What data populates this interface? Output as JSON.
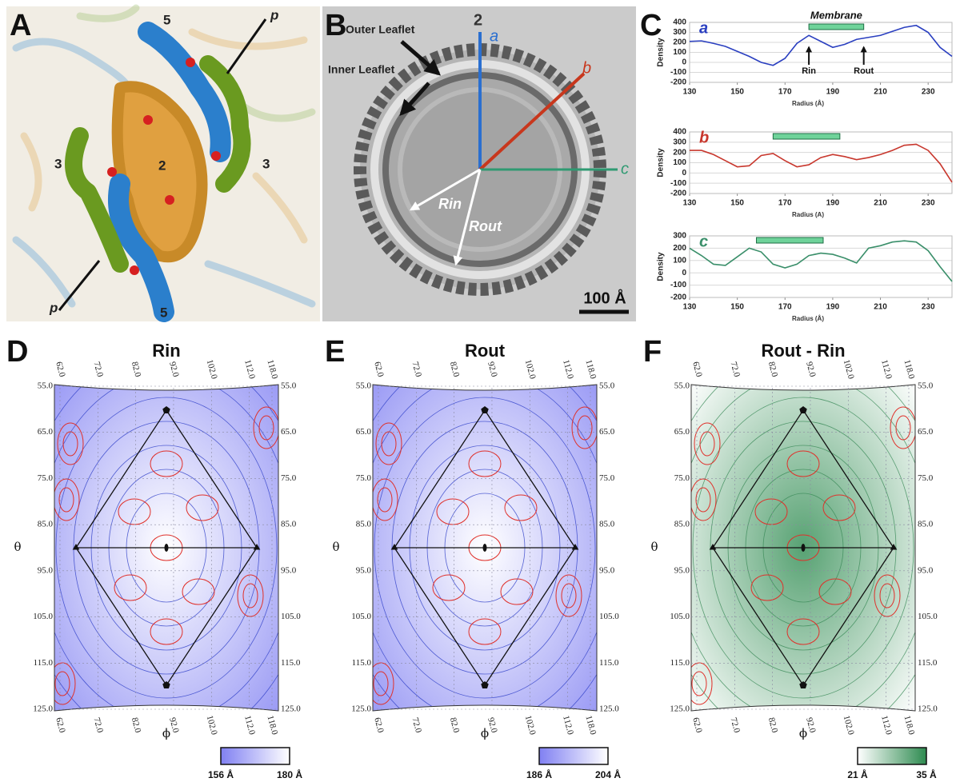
{
  "panels": {
    "A": {
      "letter": "A",
      "labels": [
        "5",
        "p",
        "3",
        "2",
        "3",
        "p",
        "5"
      ]
    },
    "B": {
      "letter": "B",
      "axis_label": "2",
      "outer": "Outer Leaflet",
      "inner": "Inner Leaflet",
      "axes": [
        "a",
        "b",
        "c"
      ],
      "r_in": "Rin",
      "r_out": "Rout",
      "scale": "100 Å"
    },
    "C": {
      "letter": "C"
    }
  },
  "chart_data": [
    {
      "type": "line",
      "x_label": "Radius (Å)",
      "y_label": "Density",
      "x": [
        130,
        135,
        140,
        145,
        150,
        155,
        160,
        165,
        170,
        175,
        180,
        185,
        190,
        195,
        200,
        205,
        210,
        215,
        220,
        225,
        230,
        235,
        240
      ],
      "series": [
        {
          "name": "a",
          "color": "#2a3fc0",
          "values": [
            210,
            215,
            190,
            160,
            110,
            60,
            0,
            -30,
            40,
            190,
            270,
            210,
            150,
            180,
            230,
            250,
            270,
            310,
            350,
            370,
            300,
            150,
            60
          ]
        }
      ],
      "xlim": [
        130,
        240
      ],
      "ylim": [
        -200,
        400
      ],
      "xticks": [
        130,
        150,
        170,
        190,
        210,
        230
      ],
      "yticks": [
        -200,
        -100,
        0,
        100,
        200,
        300,
        400
      ],
      "membrane": [
        180,
        203
      ],
      "membrane_label": "Membrane",
      "annotations": [
        {
          "text": "Rin",
          "x": 180
        },
        {
          "text": "Rout",
          "x": 203
        }
      ]
    },
    {
      "type": "line",
      "x_label": "Radius (A)",
      "y_label": "Density",
      "x": [
        130,
        135,
        140,
        145,
        150,
        155,
        160,
        165,
        170,
        175,
        180,
        185,
        190,
        195,
        200,
        205,
        210,
        215,
        220,
        225,
        230,
        235,
        240
      ],
      "series": [
        {
          "name": "b",
          "color": "#c8372d",
          "values": [
            220,
            220,
            180,
            120,
            60,
            70,
            170,
            190,
            120,
            60,
            80,
            150,
            180,
            160,
            130,
            150,
            180,
            220,
            270,
            280,
            220,
            90,
            -90
          ]
        }
      ],
      "xlim": [
        130,
        240
      ],
      "ylim": [
        -200,
        400
      ],
      "xticks": [
        130,
        150,
        170,
        190,
        210,
        230
      ],
      "yticks": [
        -200,
        -100,
        0,
        100,
        200,
        300,
        400
      ],
      "membrane": [
        165,
        193
      ]
    },
    {
      "type": "line",
      "x_label": "Radius (Å)",
      "y_label": "Density",
      "x": [
        130,
        135,
        140,
        145,
        150,
        155,
        160,
        165,
        170,
        175,
        180,
        185,
        190,
        195,
        200,
        205,
        210,
        215,
        220,
        225,
        230,
        235,
        240
      ],
      "series": [
        {
          "name": "c",
          "color": "#3a8f6a",
          "values": [
            200,
            140,
            70,
            60,
            130,
            200,
            170,
            70,
            40,
            70,
            140,
            160,
            150,
            120,
            80,
            200,
            220,
            250,
            260,
            250,
            180,
            50,
            -70
          ]
        }
      ],
      "xlim": [
        130,
        240
      ],
      "ylim": [
        -200,
        300
      ],
      "xticks": [
        130,
        150,
        170,
        190,
        210,
        230
      ],
      "yticks": [
        -200,
        -100,
        0,
        100,
        200,
        300
      ],
      "membrane": [
        158,
        186
      ]
    }
  ],
  "maps": [
    {
      "letter": "D",
      "title": "Rin",
      "theta_symbol": "θ",
      "phi_symbol": "ϕ",
      "phi_ticks": [
        {
          "value": 62,
          "label": "62.0"
        },
        {
          "value": 72,
          "label": "72.0"
        },
        {
          "value": 82,
          "label": "82.0"
        },
        {
          "value": 92,
          "label": "92.0"
        },
        {
          "value": 102,
          "label": "102.0"
        },
        {
          "value": 112,
          "label": "112.0"
        },
        {
          "value": 118,
          "label": "118.0"
        }
      ],
      "theta_ticks": [
        {
          "value": 55,
          "label": "55.0"
        },
        {
          "value": 65,
          "label": "65.0"
        },
        {
          "value": 75,
          "label": "75.0"
        },
        {
          "value": 85,
          "label": "85.0"
        },
        {
          "value": 95,
          "label": "95.0"
        },
        {
          "value": 105,
          "label": "105.0"
        },
        {
          "value": 115,
          "label": "115.0"
        },
        {
          "value": 125,
          "label": "125.0"
        }
      ],
      "colorbar": {
        "min": {
          "value": 156,
          "label": "156 Å"
        },
        "max": {
          "value": 180,
          "label": "180 Å"
        },
        "colors": [
          "#8080f2",
          "#ffffff"
        ]
      }
    },
    {
      "letter": "E",
      "title": "Rout",
      "theta_symbol": "θ",
      "phi_symbol": "ϕ",
      "phi_ticks": [
        {
          "value": 62,
          "label": "62.0"
        },
        {
          "value": 72,
          "label": "72.0"
        },
        {
          "value": 82,
          "label": "82.0"
        },
        {
          "value": 92,
          "label": "92.0"
        },
        {
          "value": 102,
          "label": "102.0"
        },
        {
          "value": 112,
          "label": "112.0"
        },
        {
          "value": 118,
          "label": "118.0"
        }
      ],
      "theta_ticks": [
        {
          "value": 55,
          "label": "55.0"
        },
        {
          "value": 65,
          "label": "65.0"
        },
        {
          "value": 75,
          "label": "75.0"
        },
        {
          "value": 85,
          "label": "85.0"
        },
        {
          "value": 95,
          "label": "95.0"
        },
        {
          "value": 105,
          "label": "105.0"
        },
        {
          "value": 115,
          "label": "115.0"
        },
        {
          "value": 125,
          "label": "125.0"
        }
      ],
      "colorbar": {
        "min": {
          "value": 186,
          "label": "186 Å"
        },
        "max": {
          "value": 204,
          "label": "204 Å"
        },
        "colors": [
          "#8080f2",
          "#ffffff"
        ]
      }
    },
    {
      "letter": "F",
      "title": "Rout - Rin",
      "theta_symbol": "θ",
      "phi_symbol": "ϕ",
      "phi_ticks": [
        {
          "value": 62,
          "label": "62.0"
        },
        {
          "value": 72,
          "label": "72.0"
        },
        {
          "value": 82,
          "label": "82.0"
        },
        {
          "value": 92,
          "label": "92.0"
        },
        {
          "value": 102,
          "label": "102.0"
        },
        {
          "value": 112,
          "label": "112.0"
        },
        {
          "value": 118,
          "label": "118.0"
        }
      ],
      "theta_ticks": [
        {
          "value": 55,
          "label": "55.0"
        },
        {
          "value": 65,
          "label": "65.0"
        },
        {
          "value": 75,
          "label": "75.0"
        },
        {
          "value": 85,
          "label": "85.0"
        },
        {
          "value": 95,
          "label": "95.0"
        },
        {
          "value": 105,
          "label": "105.0"
        },
        {
          "value": 115,
          "label": "115.0"
        },
        {
          "value": 125,
          "label": "125.0"
        }
      ],
      "colorbar": {
        "min": {
          "value": 21,
          "label": "21 Å"
        },
        "max": {
          "value": 35,
          "label": "35 Å"
        },
        "colors": [
          "#ffffff",
          "#2e8b50"
        ]
      }
    }
  ]
}
